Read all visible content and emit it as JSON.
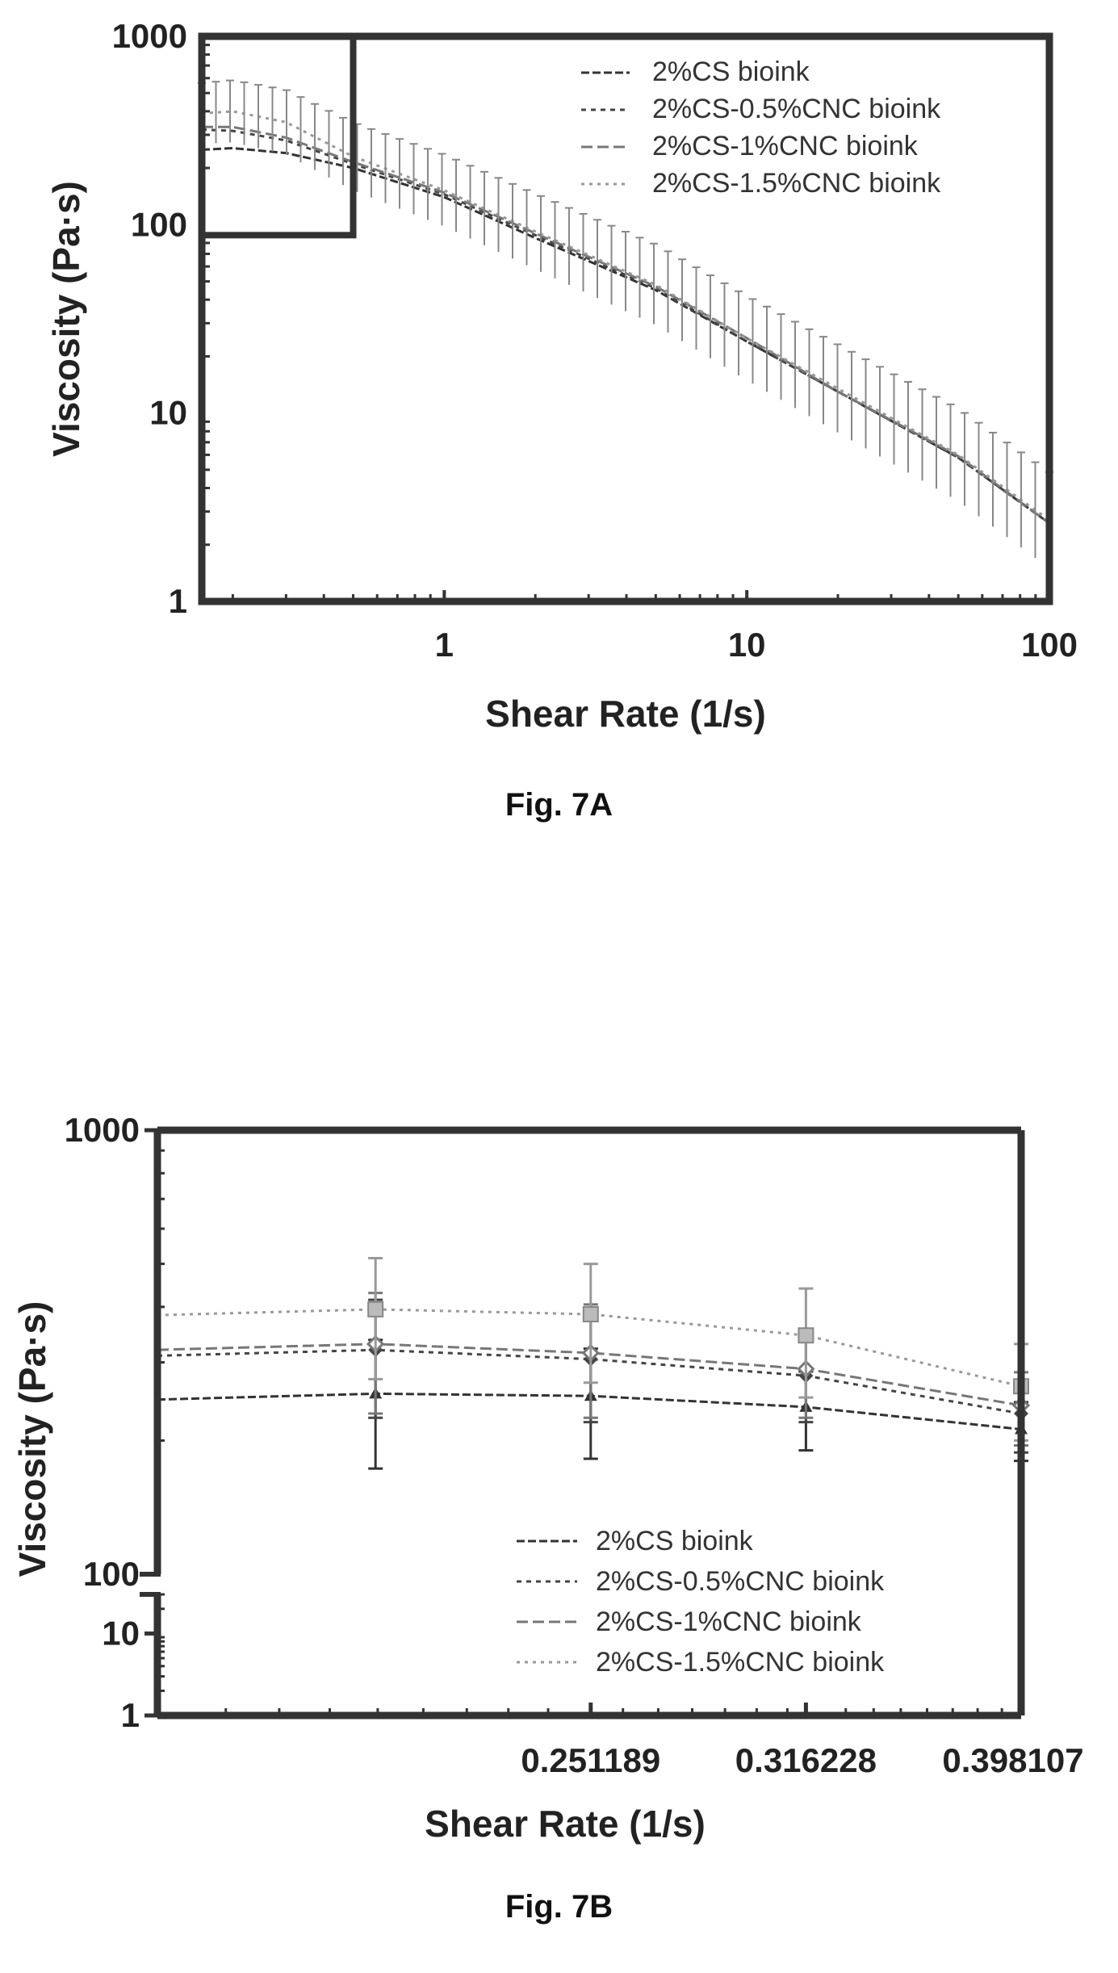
{
  "chart_data": [
    {
      "type": "line",
      "caption": "Fig. 7A",
      "xlabel": "Shear Rate (1/s)",
      "ylabel": "Viscosity (Pa·s)",
      "xscale": "log",
      "yscale": "log",
      "xlim": [
        0.158,
        100
      ],
      "ylim": [
        1,
        1000
      ],
      "xticks": [
        {
          "value": 1,
          "label": "1"
        },
        {
          "value": 10,
          "label": "10"
        },
        {
          "value": 100,
          "label": "100"
        }
      ],
      "yticks": [
        {
          "value": 1,
          "label": "1"
        },
        {
          "value": 10,
          "label": "10"
        },
        {
          "value": 100,
          "label": "100"
        },
        {
          "value": 1000,
          "label": "1000"
        }
      ],
      "legend_position": "top-right",
      "inset_box": {
        "x": [
          0.158,
          0.5
        ],
        "y": [
          88,
          1000
        ]
      },
      "series": [
        {
          "name": "2%CS bioink",
          "x": [
            0.158,
            0.2,
            0.3,
            0.5,
            1,
            2,
            5,
            10,
            20,
            50,
            100
          ],
          "y": [
            250,
            255,
            240,
            200,
            140,
            85,
            45,
            24,
            13,
            5.8,
            2.6
          ]
        },
        {
          "name": "2%CS-0.5%CNC bioink",
          "x": [
            0.158,
            0.2,
            0.3,
            0.5,
            1,
            2,
            5,
            10,
            20,
            50,
            100
          ],
          "y": [
            320,
            315,
            280,
            210,
            145,
            88,
            46,
            24,
            13,
            5.8,
            2.6
          ]
        },
        {
          "name": "2%CS-1%CNC bioink",
          "x": [
            0.158,
            0.2,
            0.3,
            0.5,
            1,
            2,
            5,
            10,
            20,
            50,
            100
          ],
          "y": [
            330,
            330,
            290,
            215,
            148,
            90,
            47,
            25,
            13,
            5.9,
            2.6
          ]
        },
        {
          "name": "2%CS-1.5%CNC bioink",
          "x": [
            0.158,
            0.2,
            0.3,
            0.5,
            1,
            2,
            5,
            10,
            20,
            50,
            100
          ],
          "y": [
            390,
            400,
            350,
            230,
            152,
            92,
            48,
            25,
            13.5,
            6.0,
            2.7
          ]
        }
      ]
    },
    {
      "type": "line",
      "caption": "Fig. 7B",
      "xlabel": "Shear Rate (1/s)",
      "ylabel": "Viscosity (Pa·s)",
      "xscale": "log",
      "yscale": "log",
      "xlim": [
        0.158,
        0.398107
      ],
      "ylim": [
        1,
        1000
      ],
      "y_axis_break": [
        30,
        100
      ],
      "xticks": [
        {
          "value": 0.251189,
          "label": "0.251189"
        },
        {
          "value": 0.316228,
          "label": "0.316228"
        },
        {
          "value": 0.398107,
          "label": "0.398107"
        }
      ],
      "yticks": [
        {
          "value": 1,
          "label": "1"
        },
        {
          "value": 10,
          "label": "10"
        },
        {
          "value": 100,
          "label": "100"
        },
        {
          "value": 1000,
          "label": "1000"
        }
      ],
      "legend_position": "bottom-right",
      "series": [
        {
          "name": "2%CS bioink",
          "x": [
            0.199526,
            0.251189,
            0.316228,
            0.398107
          ],
          "y": [
            255,
            252,
            238,
            212
          ],
          "err": [
            82,
            70,
            48,
            32
          ]
        },
        {
          "name": "2%CS-0.5%CNC bioink",
          "x": [
            0.199526,
            0.251189,
            0.316228,
            0.398107
          ],
          "y": [
            320,
            305,
            280,
            230
          ],
          "err": [
            95,
            85,
            60,
            42
          ]
        },
        {
          "name": "2%CS-1%CNC bioink",
          "x": [
            0.199526,
            0.251189,
            0.316228,
            0.398107
          ],
          "y": [
            330,
            315,
            290,
            240
          ],
          "err": [
            100,
            90,
            65,
            45
          ]
        },
        {
          "name": "2%CS-1.5%CNC bioink",
          "x": [
            0.199526,
            0.251189,
            0.316228,
            0.398107
          ],
          "y": [
            395,
            385,
            345,
            265
          ],
          "err": [
            120,
            115,
            95,
            65
          ]
        }
      ]
    }
  ]
}
